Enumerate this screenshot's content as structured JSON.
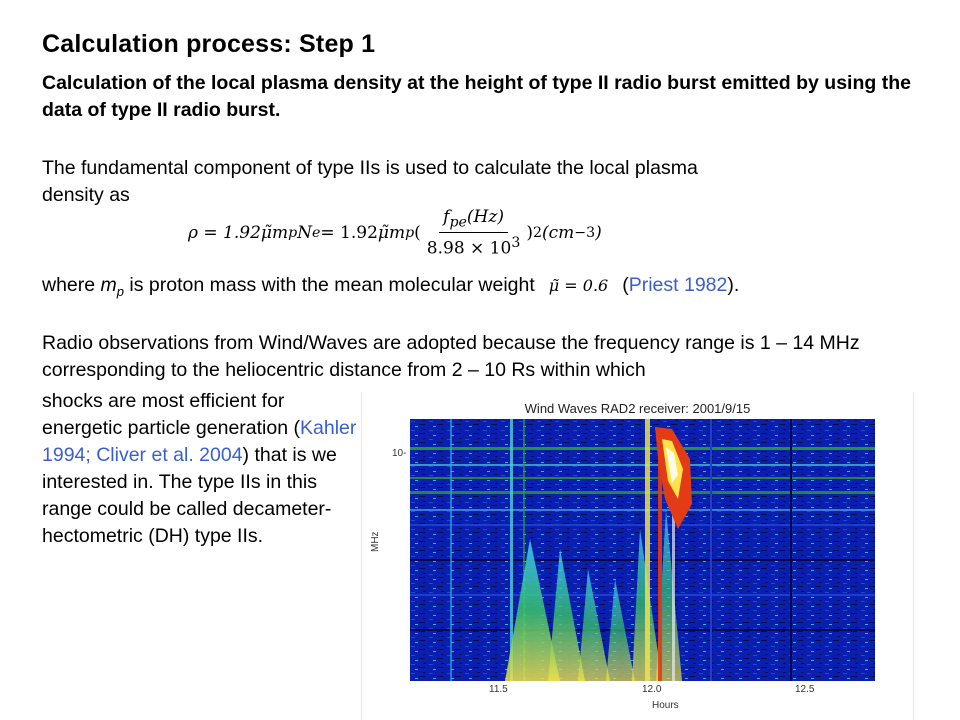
{
  "slide": {
    "title": "Calculation process: Step 1",
    "subtitle": "Calculation of the local plasma density at the height of type II radio burst emitted by using the data of type II radio burst.",
    "intro_line1": "The fundamental component of type IIs is used to calculate the local plasma",
    "intro_line2": "density as",
    "formula": {
      "lhs": "ρ = 1.92",
      "mid": "μ̃m",
      "mid_sub": "p",
      "ne": "N",
      "ne_sub": "e",
      "eq2": " = 1.92",
      "mid2": "μ̃m",
      "mid2_sub": "p",
      "open": "(",
      "numerator": "f",
      "numerator_sub": "pe",
      "numerator_rest": "(Hz)",
      "denominator": "8.98 × 10",
      "denominator_sup": "3",
      "close": ")",
      "close_sup": "2",
      "unit": "(cm",
      "unit_sup": "−3",
      "unit_close": ")"
    },
    "where_pre": "where ",
    "where_m": "m",
    "where_sub": "p",
    "where_post": " is proton mass with the mean molecular weight",
    "mu_value": "μ̃ = 0.6",
    "ref_open": "(",
    "ref_link": "Priest 1982",
    "ref_close": ").",
    "radio_para": "Radio observations from Wind/Waves are adopted because the frequency range is 1 – 14 MHz corresponding to the heliocentric distance from 2 – 10 Rs within which",
    "left_text_1": "shocks are most efficient for energetic particle generation (",
    "left_link_1": "Kahler 1994; Cliver et al. 2004",
    "left_text_2": ") that is we interested in. The type IIs in this range could be called decameter-hectometric (DH) type IIs."
  },
  "figure": {
    "title": "Wind Waves RAD2 receiver: 2001/9/15",
    "y_axis_label": "MHz",
    "y_tick": "10-",
    "x_ticks": [
      "11.5",
      "12.0",
      "12.5"
    ],
    "x_axis_label": "Hours",
    "colors": {
      "background": "#0a1fae",
      "band": "#2b9d2f",
      "burst": "#e23b16",
      "hot": "#ffe24a",
      "accent_link": "#3a5fcd"
    }
  }
}
